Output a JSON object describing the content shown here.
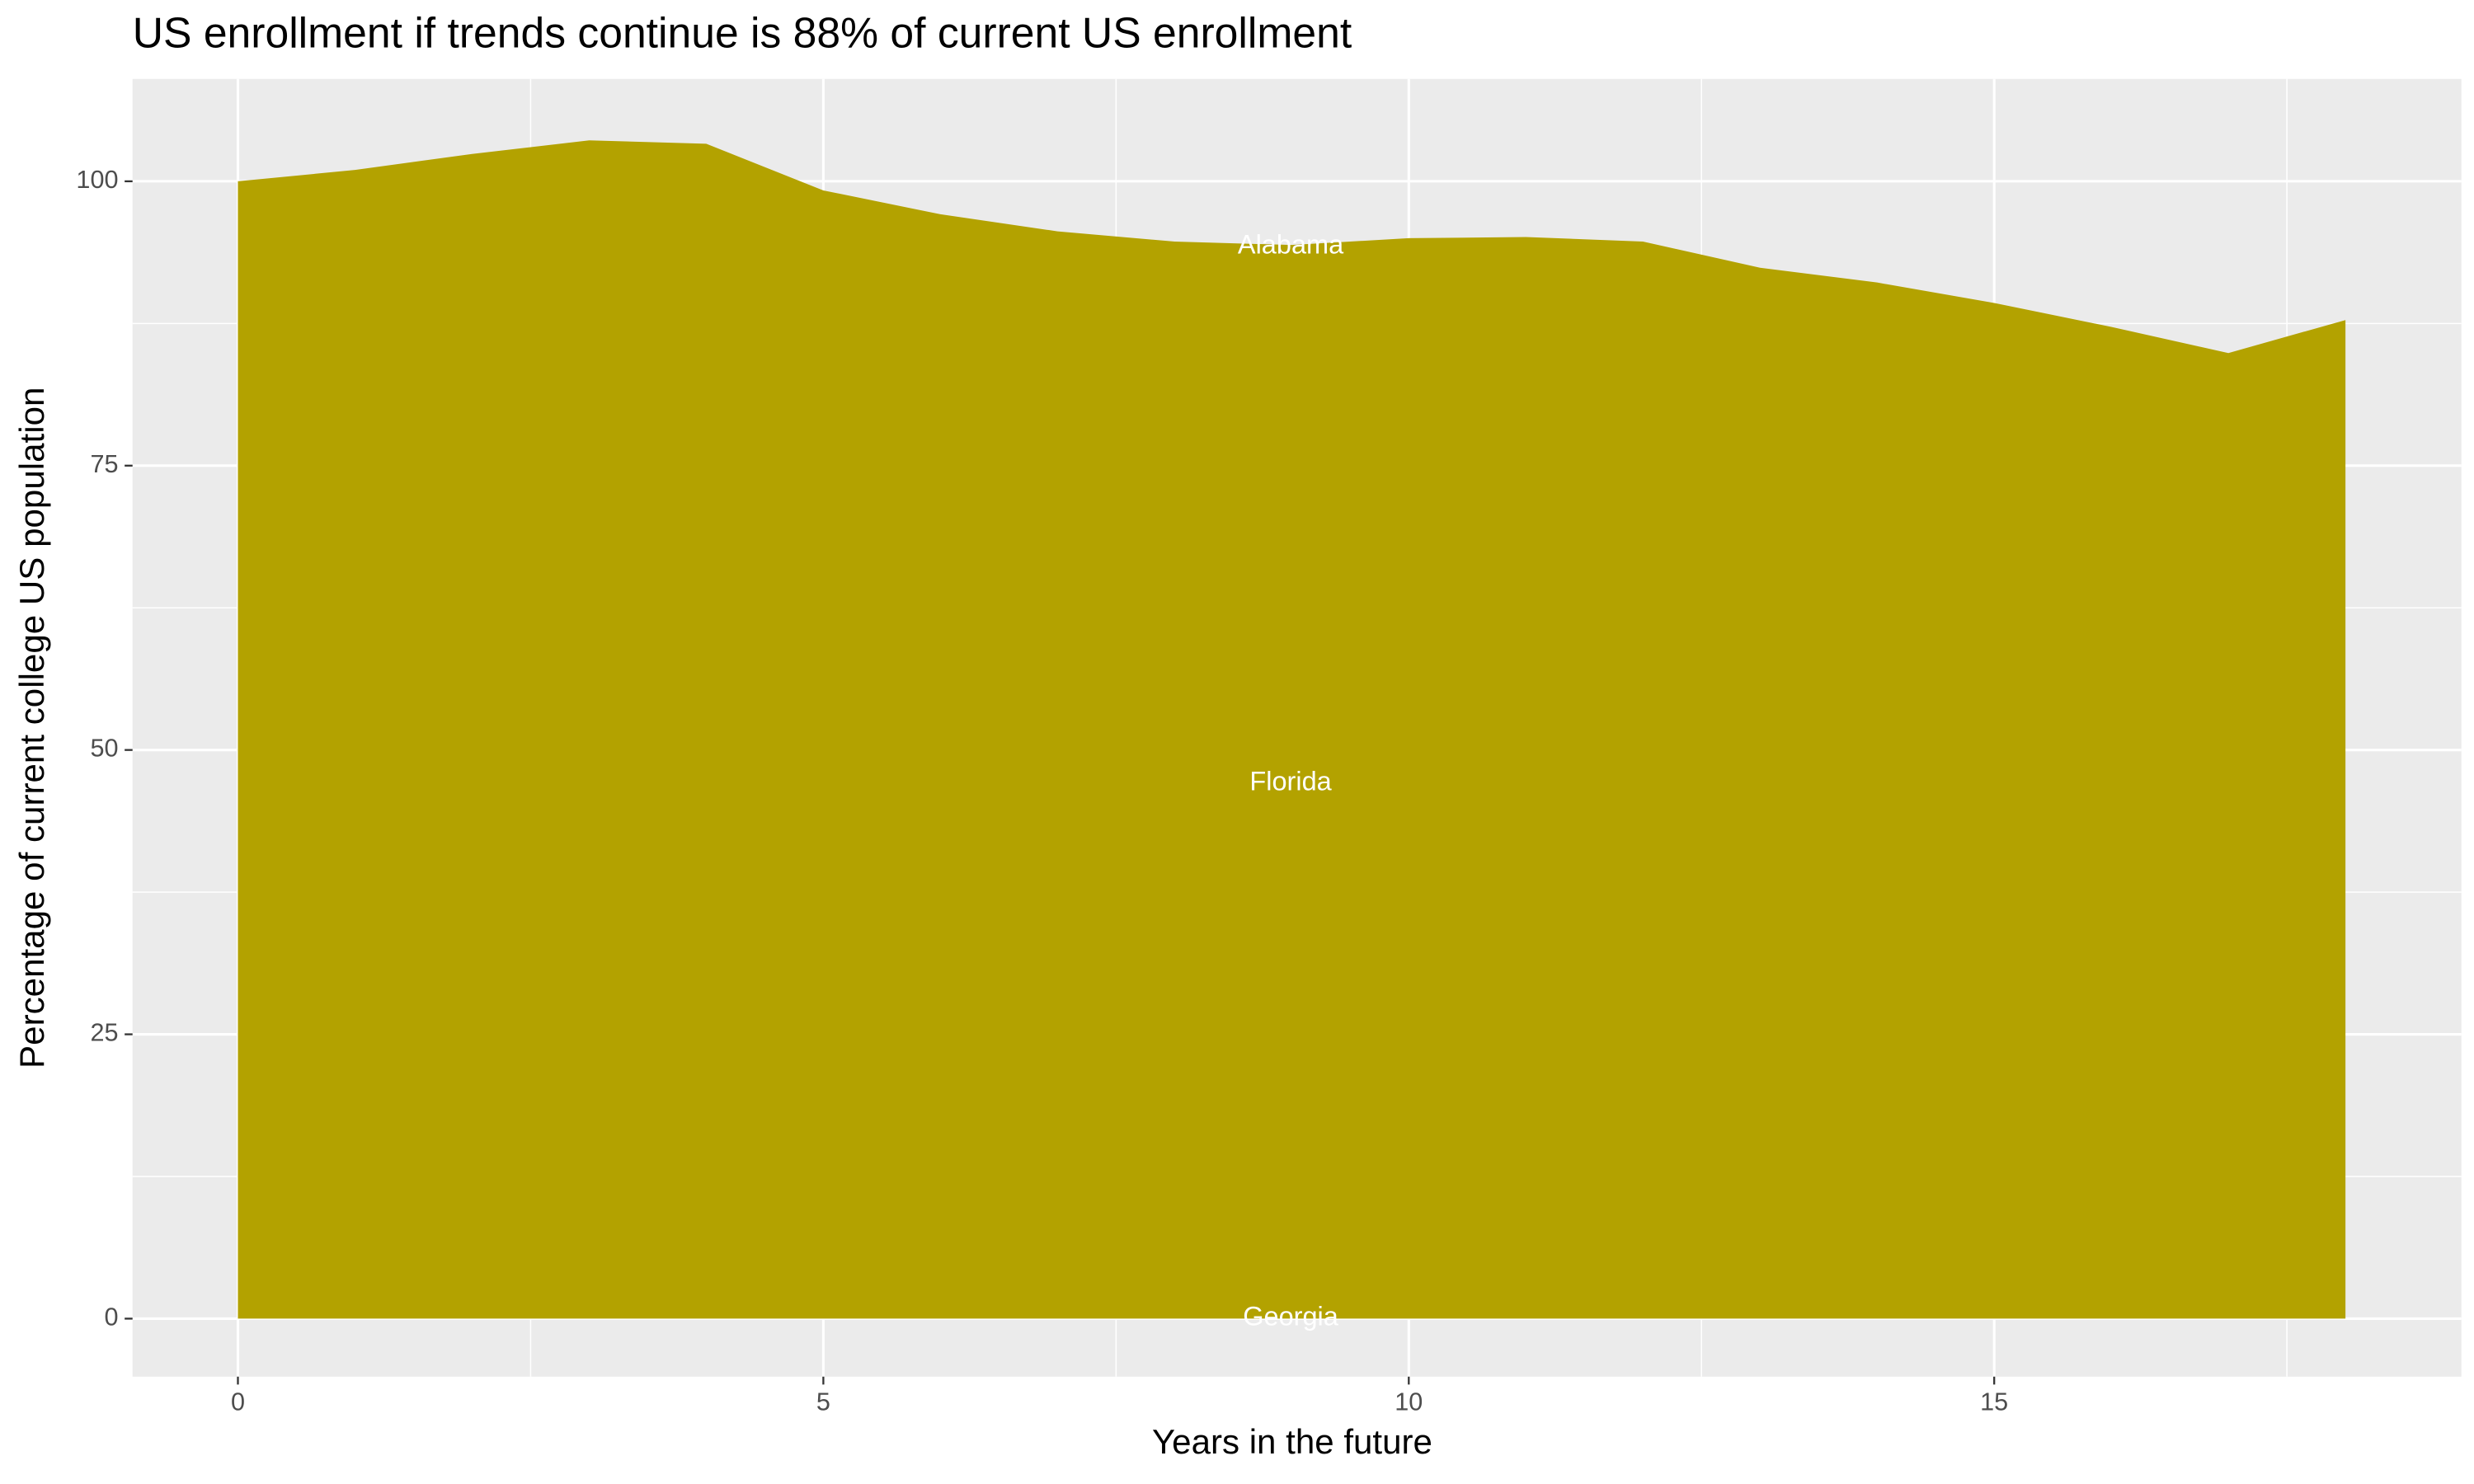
{
  "chart_data": {
    "type": "area",
    "title": "US enrollment if trends continue is 88% of current US enrollment",
    "x_label": "Years in the future",
    "y_label": "Percentage of current college US population",
    "x": [
      0,
      1,
      2,
      3,
      4,
      5,
      6,
      7,
      8,
      9,
      10,
      11,
      12,
      13,
      14,
      15,
      16,
      17,
      18
    ],
    "values": [
      100,
      101,
      102.4,
      103.6,
      103.3,
      99.2,
      97.1,
      95.6,
      94.7,
      94.4,
      95.0,
      95.1,
      94.7,
      92.4,
      91.1,
      89.3,
      87.2,
      84.9,
      87.8
    ],
    "color": "#b3a200",
    "annotations": [
      "Alabama",
      "Florida",
      "Georgia"
    ],
    "xlim": [
      -0.9,
      18.99
    ],
    "ylim": [
      -5.1,
      109
    ],
    "xticks": [
      0,
      5,
      10,
      15
    ],
    "yticks": [
      0,
      25,
      50,
      75,
      100
    ],
    "grid": true
  }
}
